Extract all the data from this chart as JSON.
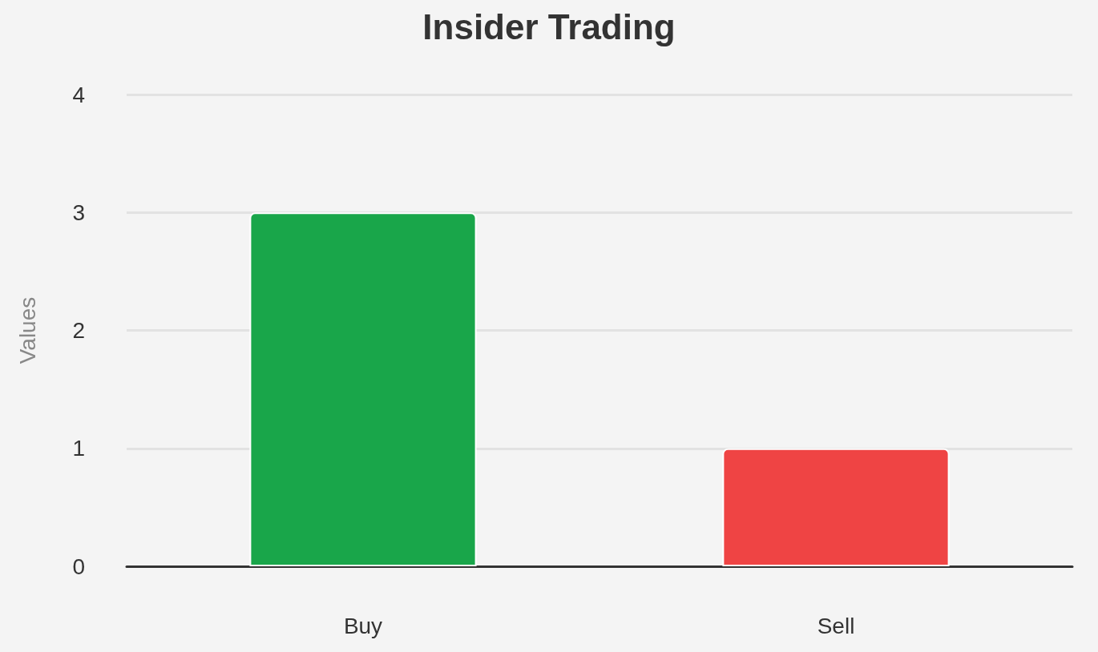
{
  "chart_data": {
    "type": "bar",
    "title": "Insider Trading",
    "ylabel": "Values",
    "categories": [
      "Buy",
      "Sell"
    ],
    "values": [
      3,
      1
    ],
    "colors": [
      "#19a64a",
      "#ef4444"
    ],
    "ylim": [
      0,
      4
    ],
    "yticks": [
      0,
      1,
      2,
      3,
      4
    ],
    "grid": "y"
  }
}
